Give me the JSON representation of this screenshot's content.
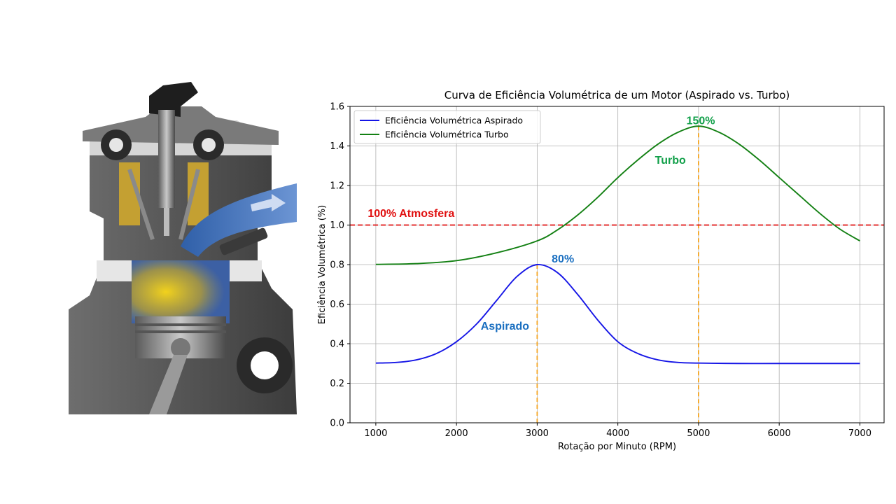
{
  "illustration": {
    "name": "engine-cutaway-illustration"
  },
  "chart_data": {
    "type": "line",
    "title": "Curva de Eficiência Volumétrica de um Motor (Aspirado vs. Turbo)",
    "xlabel": "Rotação por Minuto (RPM)",
    "ylabel": "Eficiência Volumétrica (%)",
    "xlim": [
      680,
      7300
    ],
    "ylim": [
      0.0,
      1.6
    ],
    "xticks": [
      1000,
      2000,
      3000,
      4000,
      5000,
      6000,
      7000
    ],
    "yticks": [
      "0.0",
      "0.2",
      "0.4",
      "0.6",
      "0.8",
      "1.0",
      "1.2",
      "1.4",
      "1.6"
    ],
    "grid": true,
    "legend_position": "upper-left",
    "series": [
      {
        "name": "Eficiência Volumétrica Aspirado",
        "color": "#1515e6",
        "x": [
          1000,
          1250,
          1500,
          1750,
          2000,
          2250,
          2500,
          2750,
          3000,
          3250,
          3500,
          3750,
          4000,
          4250,
          4500,
          4750,
          5000,
          5500,
          6000,
          6500,
          7000
        ],
        "y": [
          0.302,
          0.305,
          0.318,
          0.35,
          0.41,
          0.5,
          0.62,
          0.74,
          0.8,
          0.76,
          0.65,
          0.52,
          0.41,
          0.35,
          0.318,
          0.305,
          0.302,
          0.3,
          0.3,
          0.3,
          0.3
        ]
      },
      {
        "name": "Eficiência Volumétrica Turbo",
        "color": "#138013",
        "x": [
          1000,
          1500,
          2000,
          2500,
          3000,
          3250,
          3500,
          3750,
          4000,
          4250,
          4500,
          4750,
          5000,
          5250,
          5500,
          5750,
          6000,
          6250,
          6500,
          6750,
          7000
        ],
        "y": [
          0.801,
          0.805,
          0.82,
          0.86,
          0.92,
          0.975,
          1.05,
          1.14,
          1.24,
          1.33,
          1.41,
          1.47,
          1.5,
          1.47,
          1.41,
          1.33,
          1.24,
          1.15,
          1.06,
          0.98,
          0.92
        ]
      }
    ],
    "reference_line": {
      "y": 1.0,
      "color": "#e01010",
      "style": "dashed",
      "label": "100% Atmosfera"
    },
    "vertical_lines": [
      {
        "x": 3000,
        "y_top": 0.8,
        "color": "#f5a623"
      },
      {
        "x": 5000,
        "y_top": 1.5,
        "color": "#f5a623"
      }
    ],
    "annotations": [
      {
        "text": "100% Atmosfera",
        "x": 900,
        "y": 1.04,
        "color": "#e01010"
      },
      {
        "text": "80%",
        "x": 3180,
        "y": 0.81,
        "color": "#1a6fc0"
      },
      {
        "text": "Aspirado",
        "x": 2300,
        "y": 0.47,
        "color": "#1a6fc0"
      },
      {
        "text": "150%",
        "x": 4850,
        "y": 1.51,
        "color": "#12a04a"
      },
      {
        "text": "Turbo",
        "x": 4460,
        "y": 1.31,
        "color": "#12a04a"
      }
    ]
  }
}
